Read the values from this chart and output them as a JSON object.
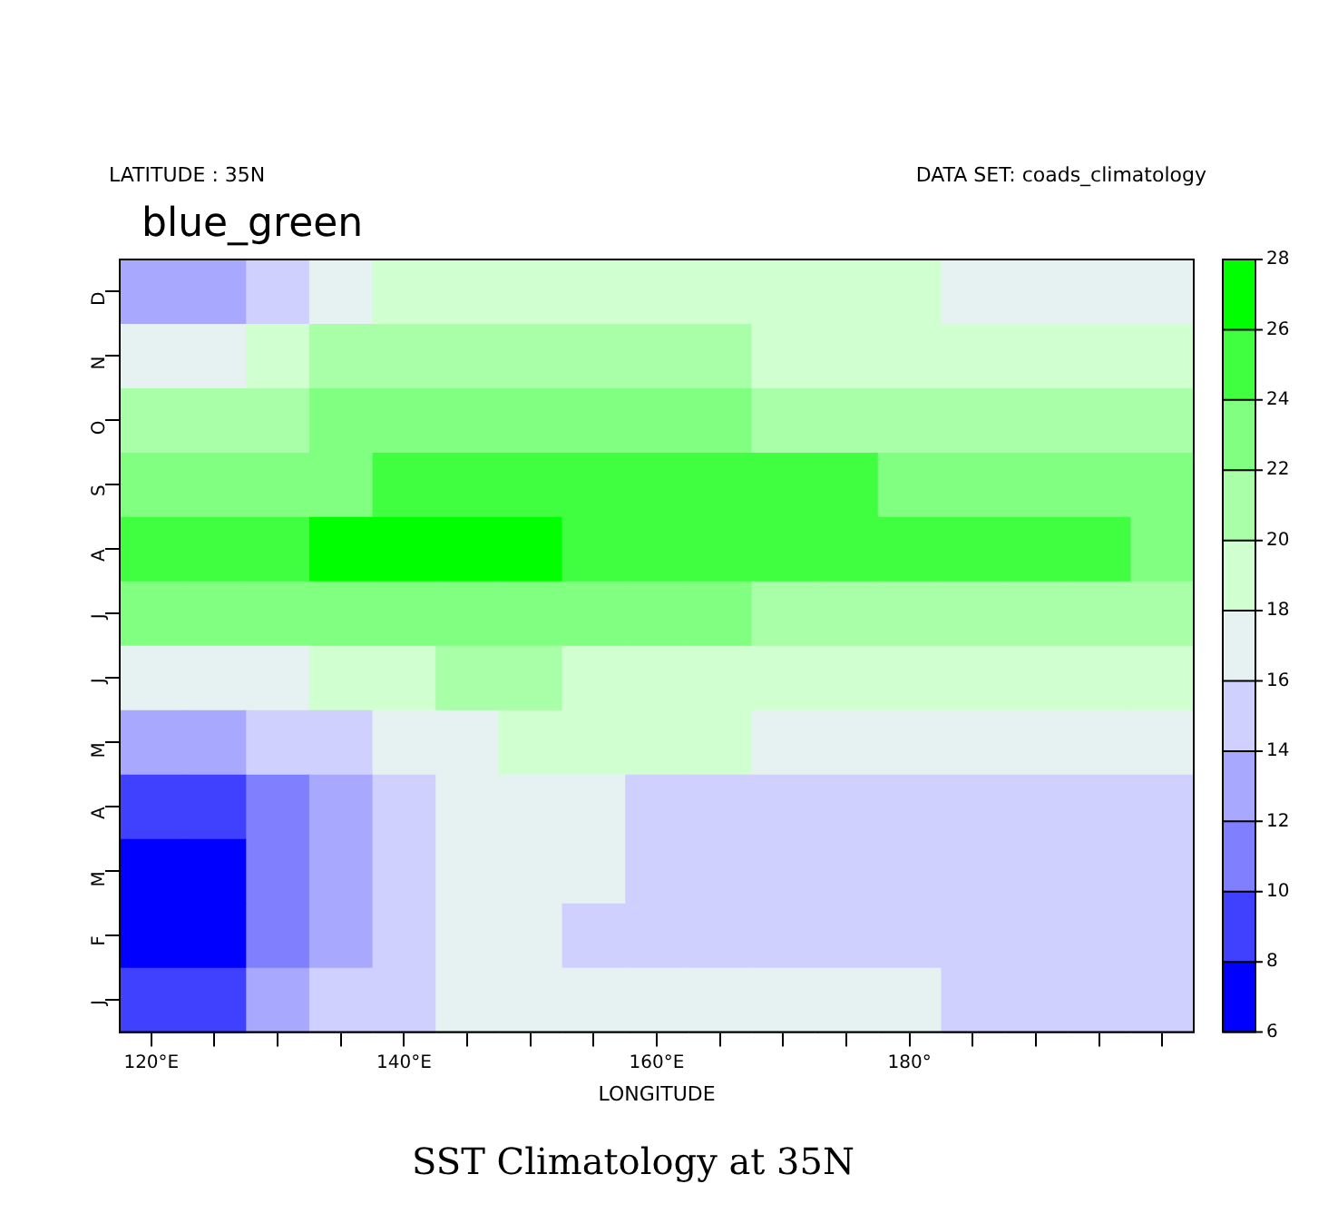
{
  "chart_data": {
    "type": "heatmap",
    "title": "SST Climatology at 35N",
    "xlabel": "LONGITUDE",
    "annotations": [
      "LATITUDE : 35N",
      "DATA SET: coads_climatology",
      "blue_green"
    ],
    "categories": [
      "120°E",
      null,
      null,
      null,
      "140°E",
      null,
      null,
      null,
      "160°E",
      null,
      null,
      null,
      "180°",
      null,
      null,
      null,
      null
    ],
    "y_categories": [
      "D",
      "N",
      "O",
      "S",
      "A",
      "J",
      "J",
      "M",
      "A",
      "M",
      "F",
      "J"
    ],
    "cells": [
      [
        13,
        13,
        15,
        17,
        19,
        19,
        19,
        19,
        19,
        19,
        19,
        19,
        19,
        17,
        17,
        17,
        17
      ],
      [
        17,
        17,
        19,
        21,
        21,
        21,
        21,
        21,
        21,
        21,
        19,
        19,
        19,
        19,
        19,
        19,
        19
      ],
      [
        21,
        21,
        21,
        23,
        23,
        23,
        23,
        23,
        23,
        23,
        21,
        21,
        21,
        21,
        21,
        21,
        21
      ],
      [
        23,
        23,
        23,
        23,
        25,
        25,
        25,
        25,
        25,
        25,
        25,
        25,
        23,
        23,
        23,
        23,
        23
      ],
      [
        25,
        25,
        25,
        27,
        27,
        27,
        27,
        25,
        25,
        25,
        25,
        25,
        25,
        25,
        25,
        25,
        23
      ],
      [
        23,
        23,
        23,
        23,
        23,
        23,
        23,
        23,
        23,
        23,
        21,
        21,
        21,
        21,
        21,
        21,
        21
      ],
      [
        17,
        17,
        17,
        19,
        19,
        21,
        21,
        19,
        19,
        19,
        19,
        19,
        19,
        19,
        19,
        19,
        19
      ],
      [
        13,
        13,
        15,
        15,
        17,
        17,
        19,
        19,
        19,
        19,
        17,
        17,
        17,
        17,
        17,
        17,
        17
      ],
      [
        9,
        9,
        11,
        13,
        15,
        17,
        17,
        17,
        15,
        15,
        15,
        15,
        15,
        15,
        15,
        15,
        15
      ],
      [
        7,
        7,
        11,
        13,
        15,
        17,
        17,
        17,
        15,
        15,
        15,
        15,
        15,
        15,
        15,
        15,
        15
      ],
      [
        7,
        7,
        11,
        13,
        15,
        17,
        17,
        15,
        15,
        15,
        15,
        15,
        15,
        15,
        15,
        15,
        15
      ],
      [
        9,
        9,
        13,
        15,
        15,
        17,
        17,
        17,
        17,
        17,
        17,
        17,
        17,
        15,
        15,
        15,
        15
      ]
    ],
    "clim": [
      6,
      28
    ],
    "cticks": [
      6,
      8,
      10,
      12,
      14,
      16,
      18,
      20,
      22,
      24,
      26,
      28
    ]
  }
}
